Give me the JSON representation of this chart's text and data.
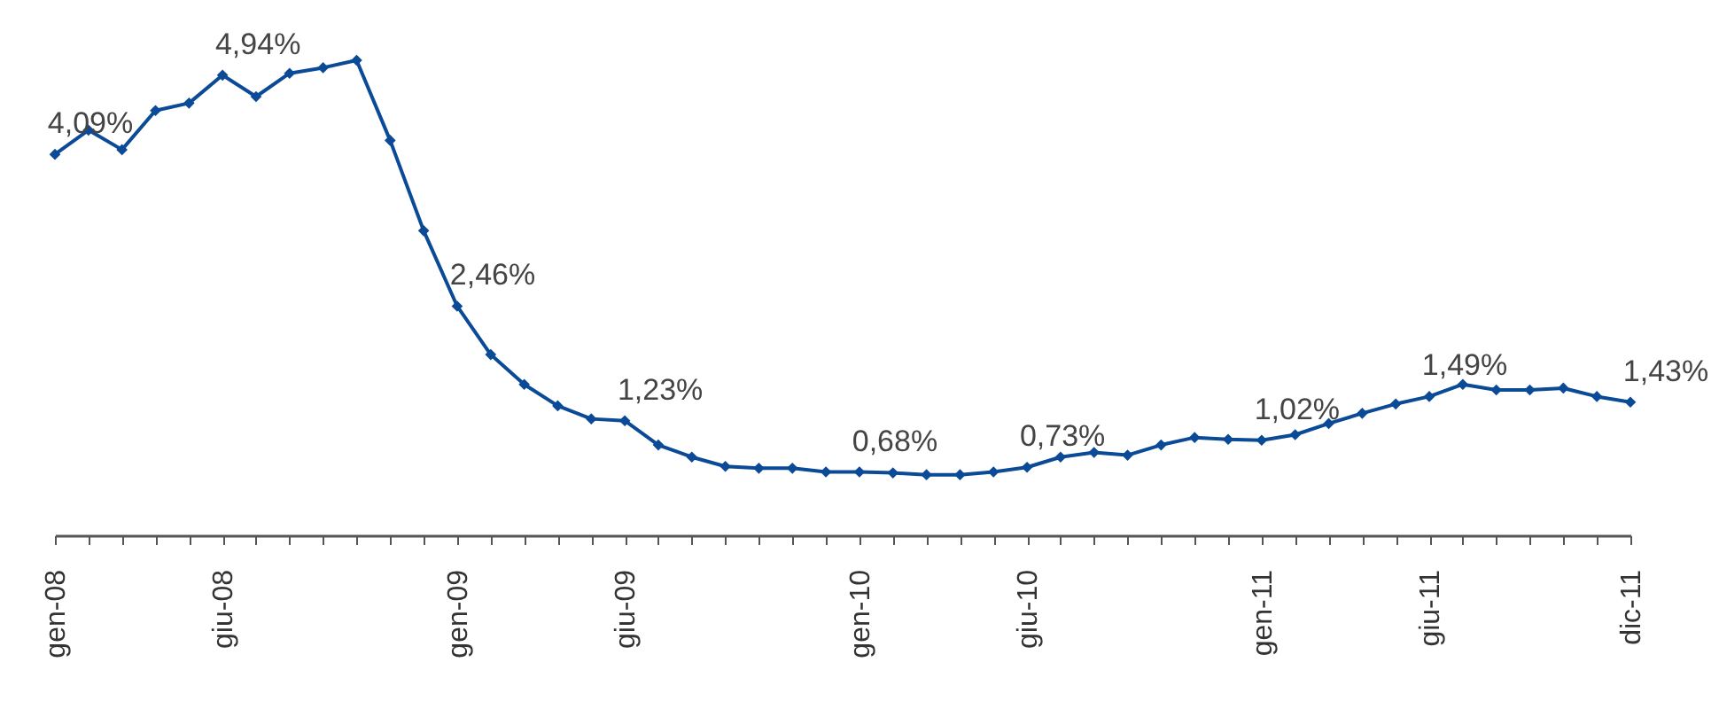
{
  "chart_data": {
    "type": "line",
    "categories": [
      "gen-08",
      null,
      null,
      null,
      null,
      "giu-08",
      null,
      null,
      null,
      null,
      null,
      null,
      "gen-09",
      null,
      null,
      null,
      null,
      "giu-09",
      null,
      null,
      null,
      null,
      null,
      null,
      "gen-10",
      null,
      null,
      null,
      null,
      "giu-10",
      null,
      null,
      null,
      null,
      null,
      null,
      "gen-11",
      null,
      null,
      null,
      null,
      "giu-11",
      null,
      null,
      null,
      null,
      null,
      "dic-11"
    ],
    "series": [
      {
        "color": "#0b4a96",
        "values": [
          4.09,
          4.35,
          4.14,
          4.56,
          4.64,
          4.94,
          4.71,
          4.96,
          5.02,
          5.1,
          4.24,
          3.27,
          2.46,
          1.94,
          1.62,
          1.39,
          1.25,
          1.23,
          0.97,
          0.84,
          0.74,
          0.72,
          0.72,
          0.68,
          0.68,
          0.67,
          0.65,
          0.65,
          0.68,
          0.73,
          0.84,
          0.89,
          0.86,
          0.97,
          1.05,
          1.03,
          1.02,
          1.08,
          1.2,
          1.31,
          1.41,
          1.49,
          1.62,
          1.56,
          1.56,
          1.58,
          1.49,
          1.43
        ],
        "value_labels": [
          "4,09%",
          null,
          null,
          null,
          null,
          "4,94%",
          null,
          null,
          null,
          null,
          null,
          null,
          "2,46%",
          null,
          null,
          null,
          null,
          "1,23%",
          null,
          null,
          null,
          null,
          null,
          null,
          "0,68%",
          null,
          null,
          null,
          null,
          "0,73%",
          null,
          null,
          null,
          null,
          null,
          null,
          "1,02%",
          null,
          null,
          null,
          null,
          "1,49%",
          null,
          null,
          null,
          null,
          null,
          "1,43%"
        ]
      }
    ],
    "grid": false,
    "marker": "diamond",
    "line_style": "solid"
  }
}
